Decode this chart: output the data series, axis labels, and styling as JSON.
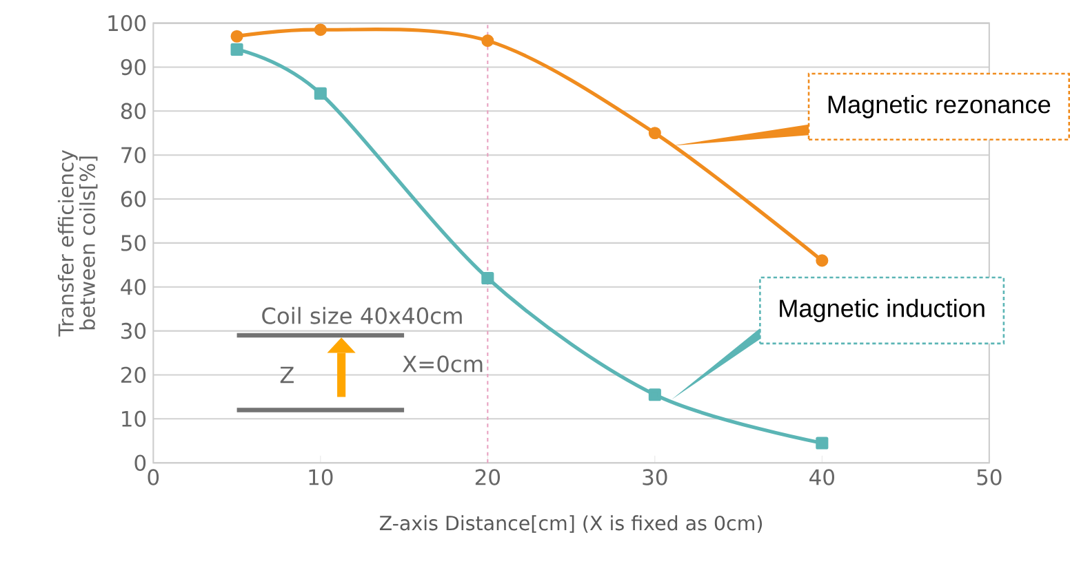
{
  "chart_data": {
    "type": "line",
    "xlabel": "Z-axis Distance[cm] (X is fixed as 0cm)",
    "ylabel": "Transfer efficiency\nbetween coils[%]",
    "x": [
      5,
      10,
      20,
      30,
      40
    ],
    "series": [
      {
        "name": "Magnetic rezonance",
        "color": "#f08c1e",
        "marker": "circle",
        "values": [
          97,
          98.5,
          96,
          75,
          46
        ]
      },
      {
        "name": "Magnetic induction",
        "color": "#5bb5b5",
        "marker": "square",
        "values": [
          94,
          84,
          42,
          15.5,
          4.5
        ]
      }
    ],
    "xlim": [
      0,
      50
    ],
    "ylim": [
      0,
      100
    ],
    "xticks": [
      0,
      10,
      20,
      30,
      40,
      50
    ],
    "yticks": [
      0,
      10,
      20,
      30,
      40,
      50,
      60,
      70,
      80,
      90,
      100
    ],
    "grid": "y",
    "ref_lines": [
      {
        "axis": "x",
        "value": 20,
        "color": "#e8a0c0",
        "line_style": "dashed"
      }
    ],
    "annotations": [
      "Coil size 40x40cm",
      "Z",
      "X=0cm"
    ]
  }
}
